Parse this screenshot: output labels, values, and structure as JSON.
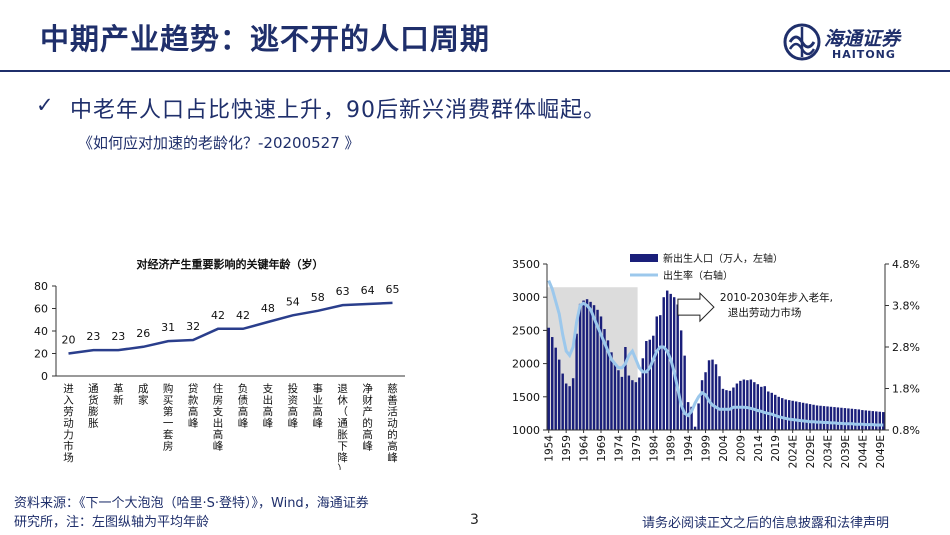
{
  "header": {
    "title": "中期产业趋势：逃不开的人口周期",
    "logo_cn": "海通证券",
    "logo_en": "HAITONG",
    "brand_color": "#1f2f6b"
  },
  "bullet": {
    "icon": "checkmark-icon",
    "text": "中老年人口占比快速上升，90后新兴消费群体崛起。",
    "citation": "《如何应对加速的老龄化？-20200527 》"
  },
  "chart_data": [
    {
      "type": "line",
      "title": "对经济产生重要影响的关键年龄（岁）",
      "categories": [
        "进入劳动力市场",
        "通货膨胀",
        "革新",
        "成家",
        "购买第一套房",
        "贷款高峰",
        "住房支出高峰",
        "负债高峰",
        "支出高峰",
        "投资高峰",
        "事业高峰",
        "退休（通胀下降）",
        "净财产的高峰",
        "慈善活动的高峰"
      ],
      "values": [
        20,
        23,
        23,
        26,
        31,
        32,
        42,
        42,
        48,
        54,
        58,
        63,
        64,
        65
      ],
      "ylim": [
        0,
        80
      ],
      "yticks": [
        0,
        20,
        40,
        60,
        80
      ],
      "color": "#2a3e8c",
      "grid": false
    },
    {
      "type": "bar+line",
      "legend": [
        "新出生人口（万人，左轴）",
        "出生率（右轴）"
      ],
      "legend_position": "top",
      "bar_color": "#1a1f7a",
      "line_color": "#9cc8ec",
      "shade_color": "#dcdcdc",
      "shade_range": [
        1954,
        1979
      ],
      "left_ylim": [
        1000,
        3500
      ],
      "left_yticks": [
        1000,
        1500,
        2000,
        2500,
        3000,
        3500
      ],
      "right_ylim": [
        0.8,
        4.8
      ],
      "right_yticks": [
        "0.8%",
        "1.8%",
        "2.8%",
        "3.8%",
        "4.8%"
      ],
      "xticks": [
        "1954",
        "1959",
        "1964",
        "1969",
        "1974",
        "1979",
        "1984",
        "1989",
        "1994",
        "1999",
        "2004",
        "2009",
        "2014",
        "2019",
        "2024E",
        "2029E",
        "2034E",
        "2039E",
        "2044E",
        "2049E"
      ],
      "annotation": "2010-2030年步入老年,\n退出劳动力市场",
      "years": [
        1954,
        1955,
        1956,
        1957,
        1958,
        1959,
        1960,
        1961,
        1962,
        1963,
        1964,
        1965,
        1966,
        1967,
        1968,
        1969,
        1970,
        1971,
        1972,
        1973,
        1974,
        1975,
        1976,
        1977,
        1978,
        1979,
        1980,
        1981,
        1982,
        1983,
        1984,
        1985,
        1986,
        1987,
        1988,
        1989,
        1990,
        1991,
        1992,
        1993,
        1994,
        1995,
        1996,
        1997,
        1998,
        1999,
        2000,
        2001,
        2002,
        2003,
        2004,
        2005,
        2006,
        2007,
        2008,
        2009,
        2010,
        2011,
        2012,
        2013,
        2014,
        2015,
        2016,
        2017,
        2018,
        2019,
        2020,
        2021,
        2022,
        2023,
        2024,
        2025,
        2026,
        2027,
        2028,
        2029,
        2030,
        2031,
        2032,
        2033,
        2034,
        2035,
        2036,
        2037,
        2038,
        2039,
        2040,
        2041,
        2042,
        2043,
        2044,
        2045,
        2046,
        2047,
        2048,
        2049,
        2050
      ],
      "births": [
        2540,
        2400,
        2240,
        2060,
        1850,
        1700,
        1660,
        1780,
        2450,
        2900,
        2950,
        2970,
        2930,
        2880,
        2810,
        2710,
        2520,
        2350,
        2170,
        2000,
        1900,
        1800,
        2250,
        1820,
        1750,
        1720,
        1790,
        2080,
        2340,
        2360,
        2420,
        2710,
        2730,
        3000,
        3100,
        3050,
        3000,
        2890,
        2500,
        2120,
        1420,
        1350,
        1050,
        1400,
        1750,
        1870,
        2050,
        2060,
        1990,
        1810,
        1620,
        1600,
        1590,
        1640,
        1700,
        1740,
        1760,
        1750,
        1760,
        1720,
        1690,
        1650,
        1660,
        1580,
        1560,
        1530,
        1500,
        1480,
        1460,
        1450,
        1440,
        1430,
        1420,
        1410,
        1400,
        1390,
        1380,
        1370,
        1365,
        1360,
        1355,
        1350,
        1345,
        1340,
        1335,
        1330,
        1325,
        1320,
        1315,
        1310,
        1300,
        1295,
        1290,
        1285,
        1280,
        1275,
        1270
      ],
      "birth_rate_pct": [
        4.4,
        4.2,
        3.9,
        3.6,
        3.1,
        2.7,
        2.6,
        2.8,
        3.4,
        3.8,
        3.85,
        3.8,
        3.7,
        3.5,
        3.3,
        3.1,
        2.9,
        2.7,
        2.5,
        2.4,
        2.3,
        2.3,
        2.4,
        2.6,
        2.7,
        2.5,
        2.3,
        2.2,
        2.2,
        2.3,
        2.5,
        2.7,
        2.8,
        2.8,
        2.7,
        2.5,
        2.2,
        1.8,
        1.4,
        1.2,
        1.15,
        1.25,
        1.45,
        1.6,
        1.7,
        1.65,
        1.5,
        1.4,
        1.35,
        1.3,
        1.3,
        1.3,
        1.3,
        1.35,
        1.35,
        1.35,
        1.35,
        1.34,
        1.32,
        1.3,
        1.27,
        1.25,
        1.22,
        1.2,
        1.18,
        1.15,
        1.12,
        1.1,
        1.08,
        1.06,
        1.05,
        1.04,
        1.03,
        1.02,
        1.01,
        1.0,
        1.0,
        0.99,
        0.99,
        0.98,
        0.98,
        0.97,
        0.97,
        0.96,
        0.96,
        0.95,
        0.95,
        0.95,
        0.94,
        0.94,
        0.94,
        0.93,
        0.93,
        0.93,
        0.92,
        0.92,
        0.92
      ]
    }
  ],
  "footer": {
    "source_line1": "资料来源：《下一个大泡泡（哈里·S·登特）》，Wind，海通证券",
    "source_line2": "研究所，注：左图纵轴为平均年龄",
    "page_number": "3",
    "disclaimer": "请务必阅读正文之后的信息披露和法律声明"
  }
}
